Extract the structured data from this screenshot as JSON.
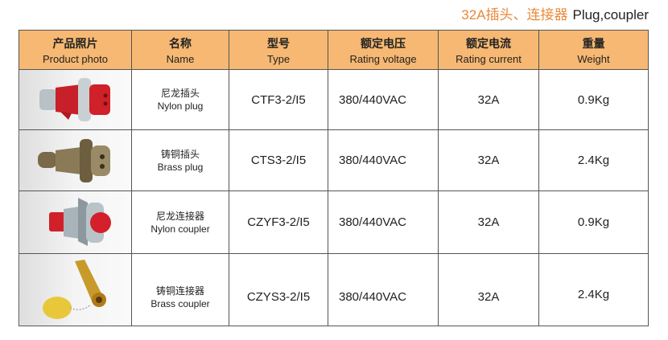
{
  "title": {
    "cn": "32A插头、连接器",
    "en": "Plug,coupler"
  },
  "colors": {
    "header_bg": "#f6b872",
    "title_accent": "#e8893a"
  },
  "headers": [
    {
      "cn": "产品照片",
      "en": "Product photo"
    },
    {
      "cn": "名称",
      "en": "Name"
    },
    {
      "cn": "型号",
      "en": "Type"
    },
    {
      "cn": "额定电压",
      "en": "Rating voltage"
    },
    {
      "cn": "额定电流",
      "en": "Rating current"
    },
    {
      "cn": "重量",
      "en": "Weight"
    }
  ],
  "rows": [
    {
      "photo": "nylon-plug-image",
      "name_cn": "尼龙插头",
      "name_en": "Nylon plug",
      "type": "CTF3-2/I5",
      "voltage": "380/440VAC",
      "current": "32A",
      "weight": "0.9Kg"
    },
    {
      "photo": "brass-plug-image",
      "name_cn": "铸铜插头",
      "name_en": "Brass plug",
      "type": "CTS3-2/I5",
      "voltage": "380/440VAC",
      "current": "32A",
      "weight": "2.4Kg"
    },
    {
      "photo": "nylon-coupler-image",
      "name_cn": "尼龙连接器",
      "name_en": "Nylon coupler",
      "type": "CZYF3-2/I5",
      "voltage": "380/440VAC",
      "current": "32A",
      "weight": "0.9Kg"
    },
    {
      "photo": "brass-coupler-image",
      "name_cn": "铸铜连接器",
      "name_en": "Brass coupler",
      "type": "CZYS3-2/I5",
      "voltage": "380/440VAC",
      "current": "32A",
      "weight": "2.4Kg"
    }
  ]
}
